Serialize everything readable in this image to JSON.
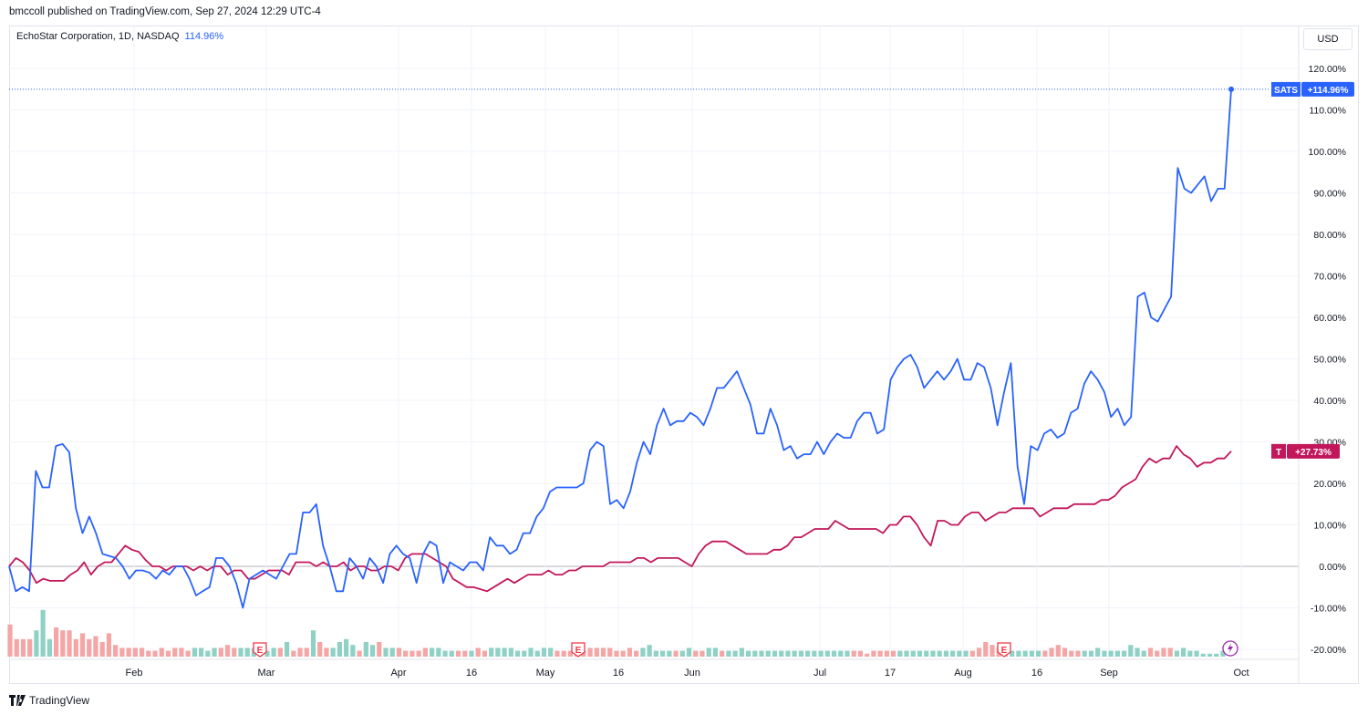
{
  "publisher": "bmccoll published on TradingView.com, Sep 27, 2024 12:29 UTC-4",
  "legend": {
    "symbol_text": "EchoStar Corporation, 1D, NASDAQ",
    "value": "114.96%"
  },
  "currency": "USD",
  "footer": {
    "brand": "TradingView"
  },
  "colors": {
    "sats": "#2962ff",
    "t": "#c2185b",
    "vol_up": "#8fd1c5",
    "vol_down": "#f4a5a5",
    "earnings": "#f23645",
    "grid": "#f0f3fa",
    "zero": "#b2b5be"
  },
  "icons": [
    "tradingview-logo-icon",
    "earnings-icon",
    "lightning-icon"
  ],
  "chart_data": {
    "type": "line",
    "x_axis_labels": [
      "Feb",
      "Mar",
      "Apr",
      "16",
      "May",
      "16",
      "Jun",
      "Jul",
      "17",
      "Aug",
      "16",
      "Sep",
      "Oct"
    ],
    "y_axis_labels": [
      "120.00%",
      "110.00%",
      "100.00%",
      "90.00%",
      "80.00%",
      "70.00%",
      "60.00%",
      "50.00%",
      "40.00%",
      "30.00%",
      "20.00%",
      "10.00%",
      "0.00%",
      "-10.00%",
      "-20.00%"
    ],
    "ylim": [
      -20,
      120
    ],
    "grid": true,
    "series": [
      {
        "name": "SATS",
        "last_value_label": "+114.96%",
        "values": [
          0,
          -6,
          -5,
          -6,
          23,
          19,
          19,
          29,
          29.5,
          27.5,
          14,
          8,
          12,
          8,
          3,
          2.5,
          2,
          0,
          -3,
          -1,
          -1,
          -1.5,
          -3,
          -1,
          -2,
          0,
          0,
          -3,
          -7,
          -6,
          -5,
          2,
          2,
          0,
          -4,
          -10,
          -3,
          -2,
          -1,
          -2,
          -3,
          0,
          3,
          3,
          13,
          13,
          15,
          5,
          0,
          -6,
          -6,
          2,
          0,
          -3,
          2,
          0,
          -4,
          3,
          5,
          3,
          2,
          -4,
          3,
          6,
          5,
          -4,
          1,
          0,
          -1,
          1,
          1,
          -1,
          7,
          5,
          5,
          3,
          4,
          8,
          8,
          12,
          14,
          18,
          19,
          19,
          19,
          19,
          20,
          28,
          30,
          29,
          15,
          16,
          14,
          18,
          25,
          30,
          27,
          34,
          38,
          34,
          35,
          35,
          37,
          36,
          34,
          38,
          43,
          43,
          45,
          47,
          43,
          39,
          32,
          32,
          38,
          34,
          28,
          29,
          26,
          27,
          27,
          30,
          27,
          30,
          32,
          31,
          31,
          35,
          37,
          37,
          32,
          33,
          45,
          48,
          50,
          51,
          48,
          43,
          45,
          47,
          45,
          47,
          50,
          45,
          45,
          49,
          48,
          43,
          34,
          42,
          49,
          24,
          15,
          29,
          28,
          32,
          33,
          31,
          32,
          37,
          38,
          44,
          47,
          45,
          42,
          36,
          38,
          34,
          36,
          65,
          66,
          60,
          59,
          62,
          65,
          96,
          91,
          90,
          92,
          94,
          88,
          91,
          91,
          114.96
        ]
      },
      {
        "name": "T",
        "last_value_label": "+27.73%",
        "values": [
          0,
          2,
          1,
          -1,
          -4,
          -3,
          -3.5,
          -3.5,
          -3.5,
          -2,
          -1,
          1,
          -2,
          0,
          1,
          1,
          3,
          5,
          4,
          3.5,
          1.5,
          0,
          0,
          -1,
          0,
          0,
          0,
          -1,
          0,
          -1,
          0,
          0,
          -2,
          -1,
          -1,
          -3,
          -3,
          -2,
          -1,
          -1,
          -1,
          -2,
          1,
          1,
          1,
          0,
          1,
          0,
          0,
          1,
          -1,
          0,
          0,
          -1,
          -1,
          0,
          0,
          -1,
          2,
          3,
          3,
          3,
          2,
          1,
          0,
          -3,
          -4,
          -5,
          -5,
          -5.5,
          -6,
          -5,
          -4,
          -3,
          -4,
          -3,
          -2,
          -2,
          -2,
          -1,
          -2,
          -2,
          -1,
          -1,
          0,
          0,
          0,
          0,
          1,
          1,
          1,
          1,
          2,
          2,
          1,
          2,
          2,
          2,
          2,
          1,
          0,
          3,
          5,
          6,
          6,
          6,
          5,
          4,
          3,
          3,
          3,
          3,
          4,
          4,
          5,
          7,
          7,
          8,
          9,
          9,
          9,
          11,
          10,
          9,
          9,
          9,
          9,
          9,
          8,
          10,
          10,
          12,
          12,
          10,
          7,
          5,
          11,
          11,
          10,
          10,
          12,
          13,
          13,
          11,
          12,
          13,
          13,
          14,
          14,
          14,
          14,
          12,
          13,
          14,
          14,
          14,
          15,
          15,
          15,
          15,
          16,
          16,
          17,
          19,
          20,
          21,
          24,
          26,
          25,
          26,
          26,
          29,
          27,
          26,
          24,
          25,
          25,
          26,
          26,
          27.73
        ]
      }
    ],
    "volume": {
      "values": [
        11,
        6,
        6,
        6,
        9,
        16,
        6,
        10,
        9,
        9,
        6,
        8,
        6,
        7,
        5,
        8,
        4,
        3,
        3,
        3,
        3,
        2,
        2,
        3,
        2,
        3,
        3,
        2,
        3,
        3,
        2,
        3,
        3,
        4,
        3,
        3,
        3,
        3,
        3,
        2,
        3,
        3,
        5,
        2,
        3,
        3,
        9,
        5,
        3,
        3,
        5,
        6,
        4,
        2,
        5,
        4,
        5,
        3,
        3,
        3,
        2,
        2,
        2,
        3,
        3,
        3,
        2,
        2,
        2,
        2,
        2,
        3,
        2,
        3,
        3,
        3,
        3,
        2,
        2,
        3,
        2,
        3,
        3,
        2,
        2,
        2,
        3,
        2,
        3,
        3,
        3,
        3,
        2,
        2,
        3,
        2,
        3,
        4,
        2,
        2,
        2,
        2,
        2,
        3,
        2,
        2,
        3,
        3,
        2,
        2,
        2,
        3,
        2,
        2,
        2,
        2,
        2,
        2,
        2,
        2,
        2,
        2,
        2,
        2,
        2,
        2,
        2,
        2,
        2,
        2,
        1,
        2,
        2,
        2,
        2,
        2,
        2,
        2,
        2,
        2,
        2,
        2,
        2,
        2,
        2,
        2,
        2,
        3,
        5,
        4,
        3,
        2,
        2,
        2,
        2,
        2,
        2,
        2,
        3,
        4,
        3,
        2,
        2,
        2,
        2,
        3,
        2,
        2,
        2,
        2,
        4,
        3,
        2,
        3,
        2,
        3,
        3,
        2,
        3,
        2,
        2,
        1,
        1,
        1,
        2
      ],
      "up": [
        0,
        0,
        0,
        0,
        1,
        1,
        1,
        0,
        0,
        0,
        0,
        0,
        0,
        0,
        0,
        0,
        0,
        0,
        0,
        0,
        0,
        0,
        0,
        0,
        0,
        0,
        0,
        0,
        1,
        1,
        1,
        1,
        0,
        0,
        0,
        1,
        1,
        1,
        1,
        1,
        1,
        0,
        1,
        0,
        0,
        0,
        1,
        0,
        0,
        1,
        1,
        1,
        1,
        0,
        1,
        1,
        0,
        1,
        1,
        0,
        0,
        0,
        0,
        0,
        1,
        1,
        1,
        1,
        0,
        0,
        1,
        0,
        0,
        1,
        1,
        1,
        1,
        1,
        1,
        1,
        1,
        1,
        1,
        0,
        0,
        0,
        0,
        0,
        0,
        0,
        0,
        0,
        0,
        0,
        0,
        0,
        1,
        1,
        1,
        1,
        1,
        0,
        1,
        1,
        0,
        0,
        1,
        1,
        0,
        1,
        1,
        1,
        1,
        1,
        1,
        1,
        1,
        1,
        1,
        1,
        1,
        1,
        1,
        1,
        1,
        1,
        1,
        1,
        0,
        0,
        0,
        0,
        0,
        0,
        0,
        1,
        1,
        1,
        1,
        1,
        1,
        1,
        1,
        1,
        1,
        1,
        0,
        0,
        0,
        0,
        0,
        0,
        1,
        1,
        1,
        1,
        1,
        0,
        0,
        0,
        0,
        0,
        0,
        1,
        1,
        1,
        1,
        1,
        1,
        1,
        1,
        1,
        1,
        0,
        0,
        0,
        0,
        1,
        1,
        1,
        1,
        1,
        1,
        1,
        1
      ],
      "earnings_markers": 3
    }
  }
}
